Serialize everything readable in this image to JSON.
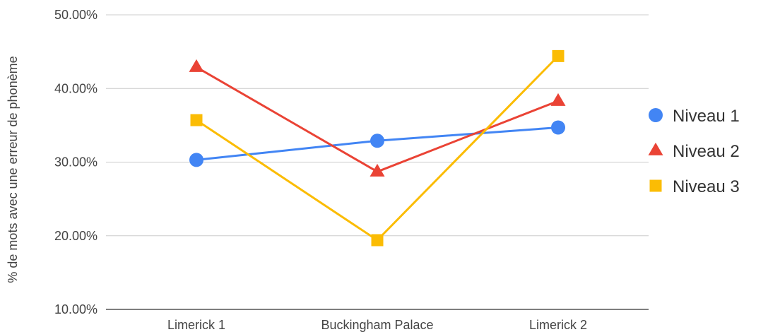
{
  "chart_data": {
    "type": "line",
    "title": "",
    "xlabel": "",
    "ylabel": "% de mots avec une erreur de phonème",
    "categories": [
      "Limerick 1",
      "Buckingham Palace",
      "Limerick 2"
    ],
    "ylim": [
      10,
      50
    ],
    "yticks": [
      10,
      20,
      30,
      40,
      50
    ],
    "ytick_labels": [
      "10.00%",
      "20.00%",
      "30.00%",
      "40.00%",
      "50.00%"
    ],
    "grid": true,
    "legend": "right",
    "series": [
      {
        "name": "Niveau 1",
        "color": "#4285F4",
        "marker": "circle",
        "values": [
          30.3,
          32.9,
          34.7
        ]
      },
      {
        "name": "Niveau 2",
        "color": "#EA4335",
        "marker": "triangle",
        "values": [
          42.9,
          28.7,
          38.3
        ]
      },
      {
        "name": "Niveau 3",
        "color": "#FBBC04",
        "marker": "square",
        "values": [
          35.7,
          19.4,
          44.4
        ]
      }
    ]
  }
}
